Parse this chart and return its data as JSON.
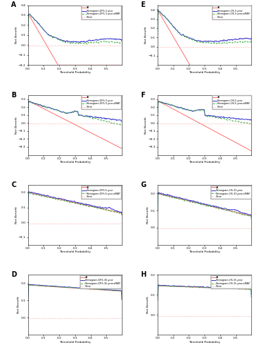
{
  "panels": [
    {
      "label": "A",
      "xlim": [
        0.0,
        0.6
      ],
      "ylim": [
        -0.2,
        0.4
      ],
      "xticks": [
        0.0,
        0.1,
        0.2,
        0.3,
        0.4,
        0.5
      ],
      "yticks": [
        -0.2,
        -0.1,
        0.0,
        0.1,
        0.2,
        0.3,
        0.4
      ],
      "legend_year": "1-year",
      "legend_type": "DFS",
      "col": 0,
      "row": 0
    },
    {
      "label": "B",
      "xlim": [
        0.0,
        0.6
      ],
      "ylim": [
        -0.4,
        0.35
      ],
      "xticks": [
        0.0,
        0.1,
        0.2,
        0.3,
        0.4,
        0.5
      ],
      "yticks": [
        -0.3,
        -0.2,
        -0.1,
        0.0,
        0.1,
        0.2,
        0.3
      ],
      "legend_year": "3-year",
      "legend_type": "DFS",
      "col": 0,
      "row": 1
    },
    {
      "label": "C",
      "xlim": [
        0.0,
        0.6
      ],
      "ylim": [
        -0.15,
        0.25
      ],
      "xticks": [
        0.0,
        0.1,
        0.2,
        0.3,
        0.4,
        0.5
      ],
      "yticks": [
        -0.1,
        0.0,
        0.1,
        0.2
      ],
      "legend_year": "5-year",
      "legend_type": "DFS",
      "col": 0,
      "row": 2
    },
    {
      "label": "D",
      "xlim": [
        0.0,
        0.6
      ],
      "ylim": [
        -0.1,
        0.25
      ],
      "xticks": [
        0.0,
        0.1,
        0.2,
        0.3,
        0.4,
        0.5
      ],
      "yticks": [
        0.0,
        0.1,
        0.2
      ],
      "legend_year": "10-year",
      "legend_type": "DFS",
      "col": 0,
      "row": 3
    },
    {
      "label": "E",
      "xlim": [
        0.0,
        0.6
      ],
      "ylim": [
        -0.2,
        0.45
      ],
      "xticks": [
        0.0,
        0.1,
        0.2,
        0.3,
        0.4,
        0.5
      ],
      "yticks": [
        -0.1,
        0.0,
        0.1,
        0.2,
        0.3,
        0.4
      ],
      "legend_year": "3-year",
      "legend_type": "OS",
      "col": 1,
      "row": 0
    },
    {
      "label": "F",
      "xlim": [
        0.0,
        0.6
      ],
      "ylim": [
        -0.4,
        0.35
      ],
      "xticks": [
        0.0,
        0.1,
        0.2,
        0.3,
        0.4,
        0.5
      ],
      "yticks": [
        -0.3,
        -0.2,
        -0.1,
        0.0,
        0.1,
        0.2,
        0.3
      ],
      "legend_year": "5-year",
      "legend_type": "OS",
      "col": 1,
      "row": 1
    },
    {
      "label": "G",
      "xlim": [
        0.0,
        0.6
      ],
      "ylim": [
        -0.1,
        0.25
      ],
      "xticks": [
        0.0,
        0.1,
        0.2,
        0.3,
        0.4,
        0.5
      ],
      "yticks": [
        0.0,
        0.1,
        0.2
      ],
      "legend_year": "10-year",
      "legend_type": "OS",
      "col": 1,
      "row": 2
    },
    {
      "label": "H",
      "xlim": [
        0.0,
        0.6
      ],
      "ylim": [
        -0.1,
        0.2
      ],
      "xticks": [
        0.0,
        0.1,
        0.2,
        0.3,
        0.4,
        0.5
      ],
      "yticks": [
        0.0,
        0.1,
        0.2
      ],
      "legend_year": "15-year",
      "legend_type": "OS",
      "col": 1,
      "row": 3
    }
  ],
  "colors": {
    "all": "#FF6B6B",
    "nomogram": "#3333CC",
    "nomogram_amap": "#33AA33",
    "none": "#FF9999"
  },
  "xlabel": "Threshold Probability",
  "ylabel": "Net Benefit"
}
